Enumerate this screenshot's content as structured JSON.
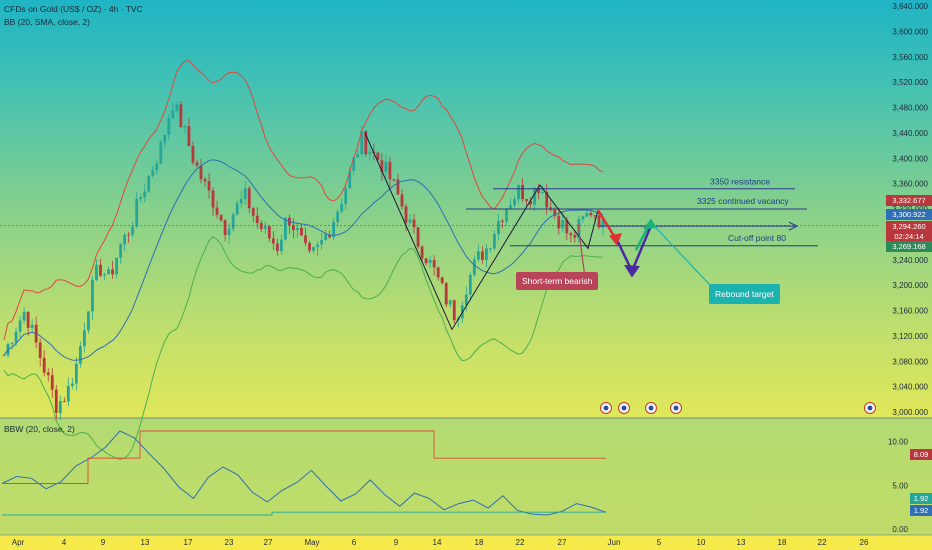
{
  "header": {
    "title": "CFDs on Gold (US$ / OZ) · 4h · TVC",
    "indicator": "BB (20, SMA, close, 2)",
    "lower_indicator": "BBW (20, close, 2)"
  },
  "annotations": {
    "resistance": "3350 resistance",
    "vacancy": "3325 continued vacancy",
    "cutoff": "Cut-off point 80",
    "short_term": "Short-term bearish",
    "rebound": "Rebound target"
  },
  "price_tags": {
    "high": "3,332.677",
    "bb_mid": "3,300.922",
    "last": "3,294.260",
    "timer": "02:24:14",
    "low": "3,269.168"
  },
  "bbw_tags": {
    "upper": "8.09",
    "a": "1.92",
    "b": "1.92"
  },
  "colors": {
    "candle_up": "#26a69a",
    "candle_down": "#b9383d",
    "bb_upper": "#e0483f",
    "bb_mid": "#2e6fb5",
    "bb_lower": "#4caf50",
    "annotation_line": "#2a3a8a",
    "short_box": "#b9445a",
    "rebound_box": "#1ab3b0"
  },
  "chart_data": {
    "type": "candlestick",
    "price_axis": {
      "ticks": [
        "3,640.000",
        "3,600.000",
        "3,560.000",
        "3,520.000",
        "3,480.000",
        "3,440.000",
        "3,400.000",
        "3,360.000",
        "3,320.000",
        "3,280.000",
        "3,240.000",
        "3,200.000",
        "3,160.000",
        "3,120.000",
        "3,080.000",
        "3,040.000",
        "3,000.000"
      ],
      "range": [
        3000,
        3640
      ]
    },
    "bbw_axis": {
      "ticks": [
        "10.00",
        "5.00",
        "0.00"
      ],
      "range": [
        0,
        12
      ]
    },
    "x_ticks": [
      "Apr",
      "4",
      "9",
      "13",
      "17",
      "23",
      "27",
      "May",
      "6",
      "9",
      "14",
      "18",
      "22",
      "27",
      "Jun",
      "5",
      "10",
      "13",
      "18",
      "22",
      "26"
    ],
    "bb_levels": {
      "resistance": 3350,
      "vacancy": 3325,
      "cutoff": 3280
    },
    "close_path": [
      3090,
      3130,
      3160,
      3110,
      3060,
      3010,
      3030,
      3080,
      3170,
      3230,
      3210,
      3260,
      3290,
      3340,
      3380,
      3420,
      3490,
      3450,
      3400,
      3360,
      3330,
      3290,
      3320,
      3340,
      3300,
      3280,
      3260,
      3310,
      3280,
      3240,
      3260,
      3290,
      3330,
      3380,
      3430,
      3410,
      3390,
      3360,
      3320,
      3280,
      3250,
      3220,
      3180,
      3150,
      3200,
      3240,
      3260,
      3300,
      3330,
      3350,
      3340,
      3360,
      3320,
      3300,
      3270,
      3300,
      3320,
      3294
    ],
    "bbw_path": [
      5.2,
      6.0,
      5.8,
      4.6,
      5.4,
      7.2,
      8.1,
      9.3,
      11.2,
      10.4,
      8.6,
      6.9,
      4.8,
      3.5,
      5.9,
      7.1,
      6.2,
      4.2,
      3.1,
      4.4,
      5.3,
      6.7,
      4.9,
      3.2,
      4.0,
      5.6,
      3.9,
      2.6,
      4.1,
      3.5,
      2.2,
      2.9,
      3.3,
      2.4,
      3.8,
      2.1,
      1.7,
      1.6,
      2.0,
      2.9,
      2.5,
      1.9
    ],
    "price_marks": [
      3332.677,
      3300.922,
      3294.26,
      3269.168
    ]
  }
}
